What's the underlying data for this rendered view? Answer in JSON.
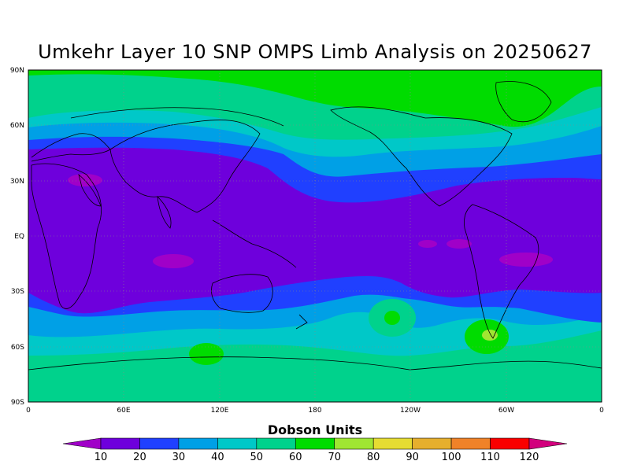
{
  "title": "Umkehr Layer 10 SNP OMPS Limb Analysis on 20250627",
  "map": {
    "projection": "cylindrical",
    "lon_range": [
      0,
      360
    ],
    "lat_range": [
      -90,
      90
    ],
    "gridlines": "dotted",
    "lat_labels": [
      "90N",
      "60N",
      "30N",
      "EQ",
      "30S",
      "60S",
      "90S"
    ],
    "lon_labels": [
      "0",
      "60E",
      "120E",
      "180",
      "120W",
      "60W",
      "0"
    ],
    "field": "Umkehr Layer 10 ozone",
    "units": "Dobson Units"
  },
  "colorbar": {
    "title": "Dobson Units",
    "levels": [
      "10",
      "20",
      "30",
      "40",
      "50",
      "60",
      "70",
      "80",
      "90",
      "100",
      "110",
      "120"
    ],
    "colors": [
      "#a000c8",
      "#6e00dc",
      "#2040ff",
      "#00a0e6",
      "#00c8c8",
      "#00d28c",
      "#00dc00",
      "#a0e632",
      "#e6dc32",
      "#e6af2d",
      "#f08228",
      "#fa0000",
      "#d2007d"
    ]
  }
}
